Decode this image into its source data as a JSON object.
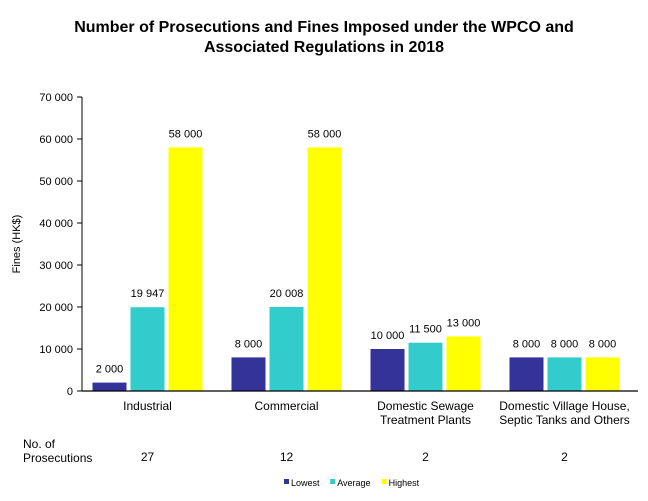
{
  "chart_data": {
    "type": "bar",
    "title_lines": [
      "Number of Prosecutions and Fines Imposed under the WPCO and",
      "Associated Regulations in 2018"
    ],
    "ylabel": "Fines (HK$)",
    "xlabel": "",
    "ylim": [
      0,
      70000
    ],
    "yticks": [
      0,
      10000,
      20000,
      30000,
      40000,
      50000,
      60000,
      70000
    ],
    "ytick_labels": [
      "0",
      "10 000",
      "20 000",
      "30 000",
      "40 000",
      "50 000",
      "60 000",
      "70 000"
    ],
    "grid": false,
    "legend_position": "bottom",
    "categories": [
      [
        "Industrial"
      ],
      [
        "Commercial"
      ],
      [
        "Domestic Sewage",
        "Treatment Plants"
      ],
      [
        "Domestic Village House,",
        "Septic Tanks and Others"
      ]
    ],
    "series": [
      {
        "name": "Lowest",
        "color": "#333399",
        "values": [
          2000,
          8000,
          10000,
          8000
        ],
        "labels": [
          "2 000",
          "8 000",
          "10 000",
          "8 000"
        ]
      },
      {
        "name": "Average",
        "color": "#33CCCC",
        "values": [
          19947,
          20008,
          11500,
          8000
        ],
        "labels": [
          "19 947",
          "20 008",
          "11 500",
          "8 000"
        ]
      },
      {
        "name": "Highest",
        "color": "#FFFF00",
        "values": [
          58000,
          58000,
          13000,
          8000
        ],
        "labels": [
          "58 000",
          "58 000",
          "13 000",
          "8 000"
        ]
      }
    ],
    "prosecutions": {
      "label_lines": [
        "No. of",
        "Prosecutions"
      ],
      "values": [
        "27",
        "12",
        "2",
        "2"
      ]
    }
  }
}
